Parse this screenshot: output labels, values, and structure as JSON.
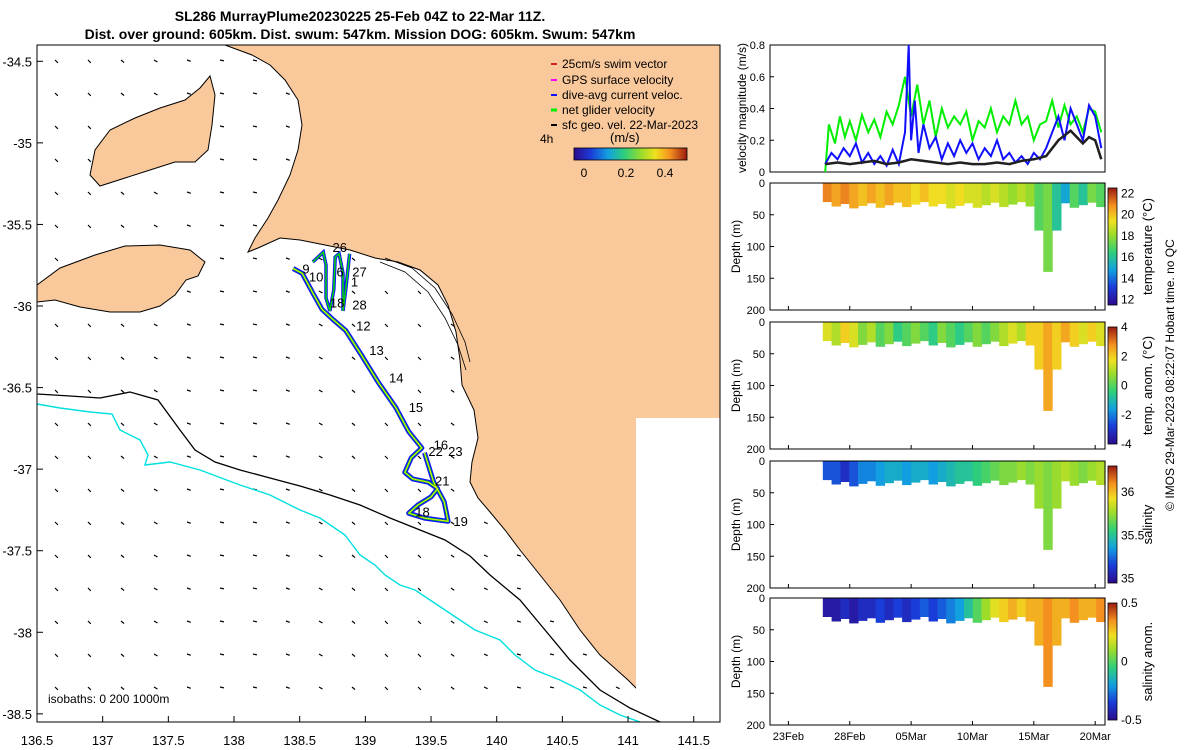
{
  "header": {
    "title_line1": "SL286 MurrayPlume20230225 25-Feb 04Z to 22-Mar 11Z.",
    "title_line2": "Dist. over ground: 605km. Dist. swum: 547km. Mission DOG: 605km. Swum: 547km"
  },
  "credit": "© IMOS 29-Mar-2023 08:22:07 Hobart time. no QC",
  "colors": {
    "land": "#f9c89b",
    "isobath_shallow": "#00e0e0",
    "isobath_deep": "#000000",
    "track_blue": "#1010ff",
    "track_green": "#00dd00",
    "swim_red": "#d02020",
    "gps_magenta": "#ff00ff",
    "net_green": "#00ee00",
    "speed_black": "#202020"
  },
  "chart_data": [
    {
      "id": "map",
      "type": "scatter",
      "title": "",
      "xlabel": "",
      "ylabel": "",
      "xlim": [
        136.5,
        141.7
      ],
      "ylim": [
        -38.55,
        -34.4
      ],
      "x_ticks": [
        136.5,
        137,
        137.5,
        138,
        138.5,
        139,
        139.5,
        140,
        140.5,
        141,
        141.5
      ],
      "y_ticks": [
        -34.5,
        -35,
        -35.5,
        -36,
        -36.5,
        -37,
        -37.5,
        -38,
        -38.5
      ],
      "legend": {
        "entries": [
          "25cm/s swim vector",
          "GPS surface velocity",
          "dive-avg current veloc.",
          "net glider velocity",
          "sfc geo. vel. 22-Mar-2023"
        ],
        "placement": "top-right",
        "extra": "4h"
      },
      "colorbar": {
        "label": "(m/s)",
        "ticks": [
          "0",
          "0.2",
          "0.4"
        ],
        "range": [
          0,
          0.5
        ]
      },
      "isobaths_label": "isobaths: 0   200  1000m",
      "track": [
        [
          138.45,
          -35.77
        ],
        [
          138.52,
          -35.8
        ],
        [
          138.6,
          -35.92
        ],
        [
          138.67,
          -36.02
        ],
        [
          138.75,
          -36.08
        ],
        [
          138.85,
          -36.15
        ],
        [
          138.97,
          -36.3
        ],
        [
          139.1,
          -36.47
        ],
        [
          139.23,
          -36.62
        ],
        [
          139.33,
          -36.77
        ],
        [
          139.43,
          -36.87
        ],
        [
          139.35,
          -36.93
        ],
        [
          139.3,
          -37.02
        ],
        [
          139.36,
          -37.06
        ],
        [
          139.48,
          -37.08
        ],
        [
          139.55,
          -37.12
        ],
        [
          139.5,
          -37.17
        ],
        [
          139.4,
          -37.22
        ],
        [
          139.33,
          -37.27
        ],
        [
          139.45,
          -37.3
        ],
        [
          139.63,
          -37.32
        ],
        [
          139.6,
          -37.2
        ],
        [
          139.52,
          -37.08
        ],
        [
          139.45,
          -36.9
        ]
      ],
      "north_loop": [
        [
          138.6,
          -35.73
        ],
        [
          138.68,
          -35.67
        ],
        [
          138.7,
          -35.75
        ],
        [
          138.7,
          -35.95
        ],
        [
          138.73,
          -36.03
        ],
        [
          138.76,
          -35.9
        ],
        [
          138.77,
          -35.7
        ],
        [
          138.8,
          -35.68
        ],
        [
          138.83,
          -35.8
        ],
        [
          138.83,
          -36.03
        ],
        [
          138.85,
          -35.9
        ],
        [
          138.88,
          -35.68
        ]
      ],
      "day_labels": [
        {
          "t": "26",
          "x": 138.75,
          "y": -35.67
        },
        {
          "t": "9",
          "x": 138.52,
          "y": -35.8
        },
        {
          "t": "10",
          "x": 138.57,
          "y": -35.85
        },
        {
          "t": "6",
          "x": 138.78,
          "y": -35.82
        },
        {
          "t": "27",
          "x": 138.9,
          "y": -35.82
        },
        {
          "t": "1",
          "x": 138.89,
          "y": -35.88
        },
        {
          "t": "28",
          "x": 138.9,
          "y": -36.02
        },
        {
          "t": "18",
          "x": 138.73,
          "y": -36.01
        },
        {
          "t": "12",
          "x": 138.93,
          "y": -36.15
        },
        {
          "t": "13",
          "x": 139.03,
          "y": -36.3
        },
        {
          "t": "14",
          "x": 139.18,
          "y": -36.47
        },
        {
          "t": "15",
          "x": 139.33,
          "y": -36.65
        },
        {
          "t": "16",
          "x": 139.52,
          "y": -36.88
        },
        {
          "t": "22",
          "x": 139.48,
          "y": -36.92
        },
        {
          "t": "23",
          "x": 139.63,
          "y": -36.92
        },
        {
          "t": "21",
          "x": 139.53,
          "y": -37.1
        },
        {
          "t": "19",
          "x": 139.67,
          "y": -37.35
        },
        {
          "t": "18",
          "x": 139.38,
          "y": -37.29
        }
      ]
    },
    {
      "id": "velocity",
      "type": "line",
      "ylabel": "velocity magnitude (m/s)",
      "ylim": [
        0,
        0.8
      ],
      "y_ticks": [
        0,
        0.2,
        0.4,
        0.6,
        0.8
      ],
      "xlim": [
        21.5,
        48.8
      ],
      "series": [
        {
          "name": "net glider velocity",
          "color": "#00ee00",
          "x": [
            26,
            26.3,
            26.8,
            27.2,
            27.6,
            28,
            28.5,
            29,
            29.5,
            30,
            30.5,
            31,
            31.5,
            32,
            32.5,
            33,
            33.5,
            34,
            34.5,
            35,
            35.5,
            36,
            36.5,
            37,
            37.5,
            38,
            38.5,
            39,
            39.5,
            40,
            40.5,
            41,
            41.5,
            42,
            42.5,
            43,
            43.5,
            44,
            44.5,
            45,
            45.5,
            46,
            46.5,
            47,
            47.5,
            48,
            48.5
          ],
          "y": [
            0,
            0.3,
            0.18,
            0.35,
            0.22,
            0.32,
            0.2,
            0.36,
            0.25,
            0.33,
            0.22,
            0.38,
            0.3,
            0.42,
            0.6,
            0.35,
            0.55,
            0.3,
            0.45,
            0.22,
            0.4,
            0.28,
            0.35,
            0.3,
            0.38,
            0.2,
            0.32,
            0.28,
            0.4,
            0.25,
            0.35,
            0.3,
            0.45,
            0.3,
            0.35,
            0.2,
            0.3,
            0.32,
            0.45,
            0.28,
            0.42,
            0.3,
            0.35,
            0.25,
            0.4,
            0.38,
            0.25
          ]
        },
        {
          "name": "dive-avg current veloc.",
          "color": "#1010ff",
          "x": [
            26,
            26.5,
            27,
            27.5,
            28,
            28.5,
            29,
            29.5,
            30,
            30.5,
            31,
            31.5,
            32,
            32.5,
            32.8,
            33,
            33.3,
            33.6,
            34,
            34.5,
            35,
            35.5,
            36,
            36.5,
            37,
            37.5,
            38,
            38.5,
            39,
            39.5,
            40,
            40.5,
            41,
            41.5,
            42,
            42.5,
            43,
            43.5,
            44,
            44.5,
            45,
            45.5,
            46,
            46.5,
            47,
            47.5,
            48,
            48.5
          ],
          "y": [
            0.05,
            0.12,
            0.08,
            0.15,
            0.1,
            0.18,
            0.06,
            0.12,
            0.05,
            0.1,
            0.04,
            0.14,
            0.05,
            0.25,
            0.8,
            0.2,
            0.45,
            0.12,
            0.3,
            0.15,
            0.22,
            0.08,
            0.18,
            0.1,
            0.2,
            0.12,
            0.18,
            0.08,
            0.15,
            0.1,
            0.2,
            0.08,
            0.12,
            0.06,
            0.1,
            0.05,
            0.12,
            0.08,
            0.15,
            0.25,
            0.35,
            0.2,
            0.4,
            0.3,
            0.2,
            0.42,
            0.35,
            0.15
          ]
        },
        {
          "name": "sfc geo. vel.",
          "color": "#202020",
          "x": [
            26,
            27,
            28,
            29,
            30,
            31,
            32,
            33,
            34,
            35,
            36,
            37,
            38,
            39,
            40,
            41,
            42,
            43,
            44,
            45,
            46,
            47,
            47.5,
            48,
            48.5
          ],
          "y": [
            0.05,
            0.06,
            0.05,
            0.06,
            0.07,
            0.05,
            0.06,
            0.08,
            0.07,
            0.06,
            0.05,
            0.06,
            0.05,
            0.05,
            0.06,
            0.05,
            0.07,
            0.08,
            0.1,
            0.2,
            0.26,
            0.18,
            0.22,
            0.2,
            0.08
          ]
        }
      ]
    },
    {
      "id": "temperature",
      "type": "heatmap",
      "ylabel": "Depth (m)",
      "colorbar_label": "temperature (°C)",
      "clim": [
        11.5,
        22.5
      ],
      "colorbar_ticks": [
        12,
        14,
        16,
        18,
        20,
        22
      ],
      "ylim": [
        200,
        0
      ],
      "y_ticks": [
        0,
        50,
        100,
        150,
        200
      ],
      "xlim": [
        21.5,
        48.8
      ],
      "x_ticks": [
        {
          "v": 23,
          "label": "23Feb"
        },
        {
          "v": 28,
          "label": "28Feb"
        },
        {
          "v": 33,
          "label": "05Mar"
        },
        {
          "v": 38,
          "label": "10Mar"
        },
        {
          "v": 43,
          "label": "15Mar"
        },
        {
          "v": 48,
          "label": "20Mar"
        }
      ],
      "profile_values": [
        21,
        20.5,
        21,
        20.5,
        20,
        20.5,
        20,
        20.5,
        20,
        20,
        19.5,
        20,
        19.5,
        19.5,
        19,
        19.5,
        19,
        19,
        18.5,
        19,
        18.5,
        18,
        18.5,
        18,
        17,
        17.5,
        16,
        15,
        17,
        16,
        17.5,
        17
      ]
    },
    {
      "id": "temp_anom",
      "type": "heatmap",
      "ylabel": "Depth (m)",
      "colorbar_label": "temp. anom. (°C)",
      "clim": [
        -4,
        4
      ],
      "colorbar_ticks": [
        -4,
        -2,
        0,
        2,
        4
      ],
      "ylim": [
        200,
        0
      ],
      "y_ticks": [
        0,
        50,
        100,
        150,
        200
      ],
      "xlim": [
        21.5,
        48.8
      ],
      "profile_values": [
        1.5,
        1,
        2,
        1.5,
        0.5,
        1,
        0,
        0.5,
        -0.5,
        0,
        0.5,
        0,
        -0.5,
        0.5,
        0,
        -0.5,
        0,
        0.5,
        0,
        0.5,
        1,
        1.5,
        1,
        2,
        2,
        2.5,
        2,
        2.5,
        2,
        1.5,
        2,
        1.5
      ]
    },
    {
      "id": "salinity",
      "type": "heatmap",
      "ylabel": "Depth (m)",
      "colorbar_label": "salinity",
      "clim": [
        34.95,
        36.3
      ],
      "colorbar_ticks": [
        35,
        35.5,
        36
      ],
      "ylim": [
        200,
        0
      ],
      "y_ticks": [
        0,
        50,
        100,
        150,
        200
      ],
      "xlim": [
        21.5,
        48.8
      ],
      "profile_values": [
        35.2,
        35.2,
        35.1,
        35.2,
        35.3,
        35.3,
        35.35,
        35.4,
        35.4,
        35.35,
        35.4,
        35.4,
        35.35,
        35.4,
        35.45,
        35.5,
        35.5,
        35.55,
        35.6,
        35.65,
        35.7,
        35.7,
        35.75,
        35.7,
        35.75,
        35.7,
        35.75,
        35.8,
        35.75,
        35.7,
        35.75,
        35.8
      ]
    },
    {
      "id": "sal_anom",
      "type": "heatmap",
      "ylabel": "Depth (m)",
      "colorbar_label": "salinity anom.",
      "clim": [
        -0.5,
        0.5
      ],
      "colorbar_ticks": [
        -0.5,
        0,
        0.5
      ],
      "ylim": [
        200,
        0
      ],
      "y_ticks": [
        0,
        50,
        100,
        150,
        200
      ],
      "xlim": [
        21.5,
        48.8
      ],
      "profile_values": [
        -0.45,
        -0.45,
        -0.4,
        -0.45,
        -0.4,
        -0.4,
        -0.35,
        -0.4,
        -0.35,
        -0.4,
        -0.35,
        -0.3,
        -0.35,
        -0.3,
        -0.25,
        -0.2,
        -0.1,
        0,
        0.1,
        0.2,
        0.25,
        0.3,
        0.25,
        0.3,
        0.3,
        0.35,
        0.3,
        0.3,
        0.35,
        0.3,
        0.3,
        0.35
      ]
    }
  ]
}
